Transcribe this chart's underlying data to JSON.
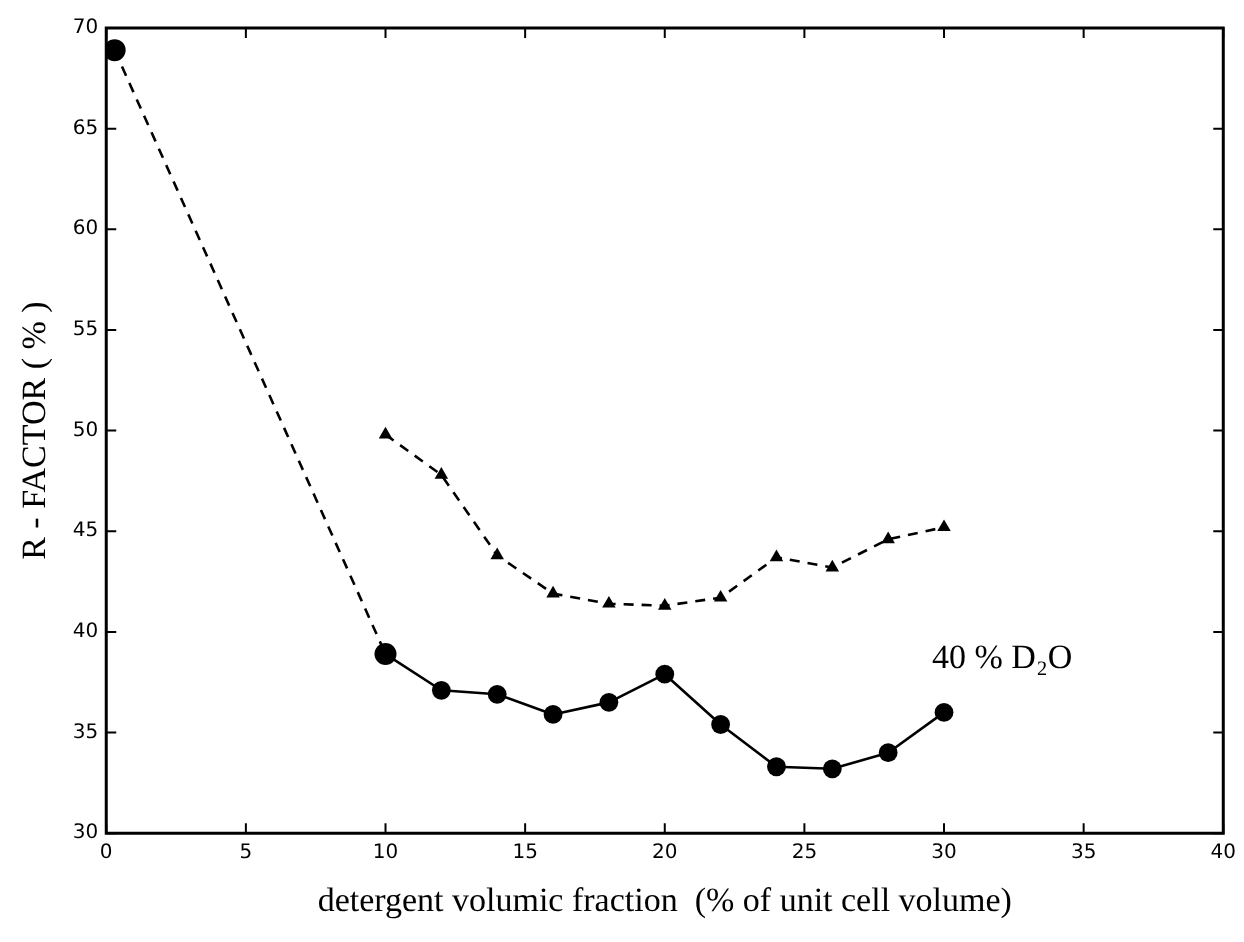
{
  "chart_data": {
    "type": "line",
    "xlabel": "detergent volumic fraction  (% of unit cell volume)",
    "ylabel": "R - FACTOR ( % )",
    "xlim": [
      0,
      40
    ],
    "xticks": [
      0,
      5,
      10,
      15,
      20,
      25,
      30,
      35,
      40
    ],
    "ylim": [
      30,
      70
    ],
    "yticks": [
      30,
      35,
      40,
      45,
      50,
      55,
      60,
      65,
      70
    ],
    "grid": false,
    "legend": false,
    "series": [
      {
        "color": "#000000",
        "marker": "circle",
        "line_style": "dashed",
        "x": [
          0.3,
          10
        ],
        "values": [
          68.9,
          38.9
        ]
      },
      {
        "name": "40 % D₂O",
        "color": "#000000",
        "marker": "circle",
        "line_style": "solid",
        "x": [
          10,
          12,
          14,
          16,
          18,
          20,
          22,
          24,
          26,
          28,
          30
        ],
        "values": [
          38.9,
          37.1,
          36.9,
          35.9,
          36.5,
          37.9,
          35.4,
          33.3,
          33.2,
          34.0,
          36.0
        ]
      },
      {
        "color": "#000000",
        "marker": "triangle",
        "line_style": "dashed",
        "x": [
          10,
          12,
          14,
          16,
          18,
          20,
          22,
          24,
          26,
          28,
          30
        ],
        "values": [
          49.8,
          47.8,
          43.8,
          41.9,
          41.4,
          41.3,
          41.7,
          43.7,
          43.2,
          44.6,
          45.2
        ]
      }
    ]
  }
}
